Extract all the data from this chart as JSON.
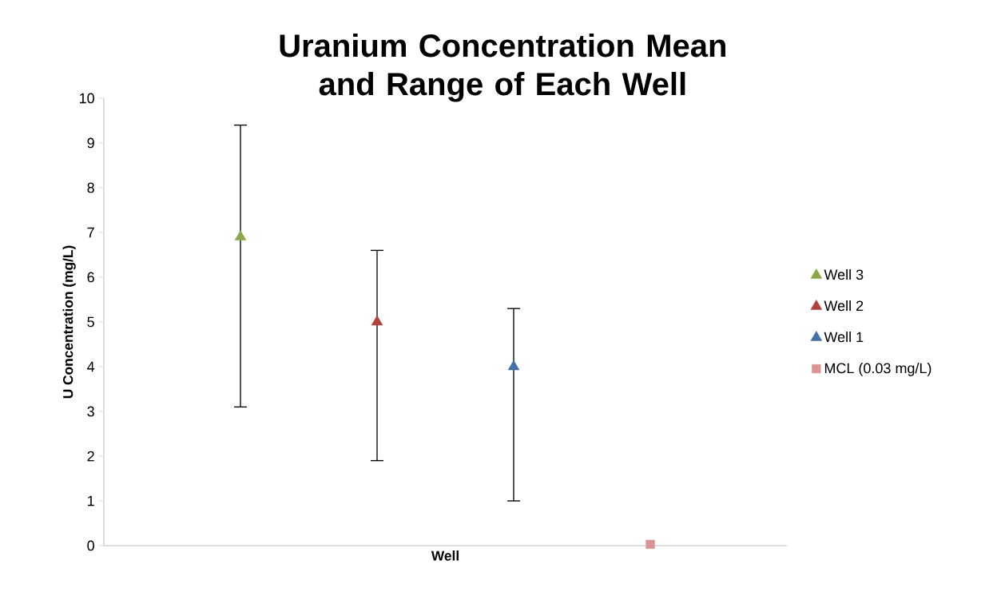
{
  "chart_data": {
    "type": "scatter",
    "title": "Uranium Concentration Mean and Range of Each Well",
    "xlabel": "Well",
    "ylabel": "U Concentration (mg/L)",
    "categories": [
      null,
      null,
      null,
      null
    ],
    "series": [
      {
        "name": "Well 3",
        "color": "#8aa84a",
        "marker": "triangle",
        "values": [
          6.9,
          null,
          null,
          null
        ],
        "errors": [
          [
            3.1,
            9.4
          ],
          null,
          null,
          null
        ]
      },
      {
        "name": "Well 2",
        "color": "#b0413e",
        "marker": "triangle",
        "values": [
          null,
          5.0,
          null,
          null
        ],
        "errors": [
          null,
          [
            1.9,
            6.6
          ],
          null,
          null
        ]
      },
      {
        "name": "Well 1",
        "color": "#4471a8",
        "marker": "triangle",
        "values": [
          null,
          null,
          4.0,
          null
        ],
        "errors": [
          null,
          null,
          [
            1.0,
            5.3
          ],
          null
        ]
      },
      {
        "name": "MCL (0.03 mg/L)",
        "color": "#d99594",
        "marker": "square",
        "values": [
          null,
          null,
          null,
          0.03
        ]
      }
    ],
    "ylim": [
      0,
      10
    ],
    "yticks": [
      0,
      1,
      2,
      3,
      4,
      5,
      6,
      7,
      8,
      9,
      10
    ],
    "grid": false,
    "legend": "right"
  }
}
